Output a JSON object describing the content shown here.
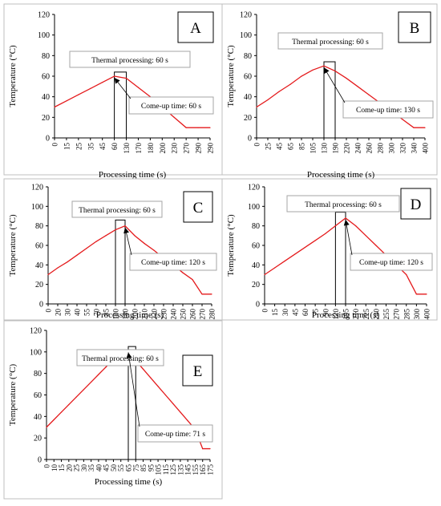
{
  "chart_data": [
    {
      "type": "line",
      "panel_label": "A",
      "ylabel": "Temperature (°C)",
      "xlabel": "Processing time (s)",
      "ylim": [
        0,
        120
      ],
      "yticks": [
        0,
        20,
        40,
        60,
        80,
        100,
        120
      ],
      "categories": [
        "0",
        "15",
        "25",
        "35",
        "45",
        "60",
        "130",
        "170",
        "180",
        "200",
        "230",
        "270",
        "290",
        "290"
      ],
      "series": [
        {
          "values": [
            30,
            36,
            42,
            48,
            54,
            60,
            58,
            49,
            40,
            30,
            20,
            10,
            10,
            10
          ]
        }
      ],
      "annotations": {
        "thermal": "Thermal processing: 60 s",
        "comeup": "Come-up time: 60 s",
        "rect_categories": [
          "60",
          "130"
        ],
        "rect_top": 64
      }
    },
    {
      "type": "line",
      "panel_label": "B",
      "ylabel": "Temperature (°C)",
      "xlabel": "Processing time (s)",
      "ylim": [
        0,
        120
      ],
      "yticks": [
        0,
        20,
        40,
        60,
        80,
        100,
        120
      ],
      "categories": [
        "0",
        "25",
        "45",
        "65",
        "85",
        "105",
        "130",
        "190",
        "220",
        "240",
        "260",
        "280",
        "300",
        "320",
        "340",
        "400"
      ],
      "series": [
        {
          "values": [
            30,
            37,
            45,
            52,
            60,
            66,
            70,
            65,
            58,
            50,
            42,
            34,
            26,
            18,
            10,
            10
          ]
        }
      ],
      "annotations": {
        "thermal": "Thermal processing: 60 s",
        "comeup": "Come-up time: 130 s",
        "rect_categories": [
          "130",
          "190"
        ],
        "rect_top": 74
      }
    },
    {
      "type": "line",
      "panel_label": "C",
      "ylabel": "Temperature (°C)",
      "xlabel": "Processing time (s)",
      "ylim": [
        0,
        120
      ],
      "yticks": [
        0,
        20,
        40,
        60,
        80,
        100,
        120
      ],
      "categories": [
        "0",
        "20",
        "30",
        "40",
        "55",
        "70",
        "85",
        "100",
        "180",
        "200",
        "210",
        "220",
        "230",
        "240",
        "250",
        "260",
        "270",
        "280"
      ],
      "series": [
        {
          "values": [
            30,
            37,
            43,
            50,
            57,
            64,
            70,
            76,
            80,
            70,
            62,
            55,
            47,
            40,
            32,
            25,
            10,
            10
          ]
        }
      ],
      "annotations": {
        "thermal": "Thermal processing: 60 s",
        "comeup": "Come-up time: 120 s",
        "rect_categories": [
          "100",
          "180"
        ],
        "rect_top": 86
      }
    },
    {
      "type": "line",
      "panel_label": "D",
      "ylabel": "Temperature (°C)",
      "xlabel": "Processing time (s)",
      "ylim": [
        0,
        120
      ],
      "yticks": [
        0,
        20,
        40,
        60,
        80,
        100,
        120
      ],
      "categories": [
        "0",
        "15",
        "30",
        "45",
        "60",
        "75",
        "90",
        "120",
        "195",
        "210",
        "225",
        "240",
        "255",
        "270",
        "285",
        "300",
        "400"
      ],
      "series": [
        {
          "values": [
            30,
            37,
            44,
            51,
            58,
            65,
            72,
            80,
            88,
            80,
            70,
            60,
            50,
            40,
            30,
            10,
            10
          ]
        }
      ],
      "annotations": {
        "thermal": "Thermal processing: 60 s",
        "comeup": "Come-up time: 120 s",
        "rect_categories": [
          "120",
          "195"
        ],
        "rect_top": 94
      }
    },
    {
      "type": "line",
      "panel_label": "E",
      "ylabel": "Temperature (°C)",
      "xlabel": "Processing time (s)",
      "ylim": [
        0,
        120
      ],
      "yticks": [
        0,
        20,
        40,
        60,
        80,
        100,
        120
      ],
      "categories": [
        "0",
        "10",
        "15",
        "20",
        "25",
        "30",
        "35",
        "40",
        "45",
        "50",
        "55",
        "65",
        "75",
        "85",
        "95",
        "105",
        "115",
        "125",
        "135",
        "145",
        "155",
        "165",
        "175"
      ],
      "series": [
        {
          "values": [
            30,
            37,
            44,
            51,
            58,
            65,
            72,
            79,
            86,
            93,
            97,
            101,
            92,
            84,
            76,
            68,
            60,
            52,
            44,
            36,
            28,
            10,
            10
          ]
        }
      ],
      "annotations": {
        "thermal": "Thermal processing: 60 s",
        "comeup": "Come-up time: 71 s",
        "rect_categories": [
          "65",
          "75"
        ],
        "rect_top": 105
      }
    }
  ],
  "colors": {
    "line": "#e41a1c",
    "axis": "#000000",
    "panel_border": "#bfbfbf",
    "annotation_border": "#a6a6a6"
  }
}
